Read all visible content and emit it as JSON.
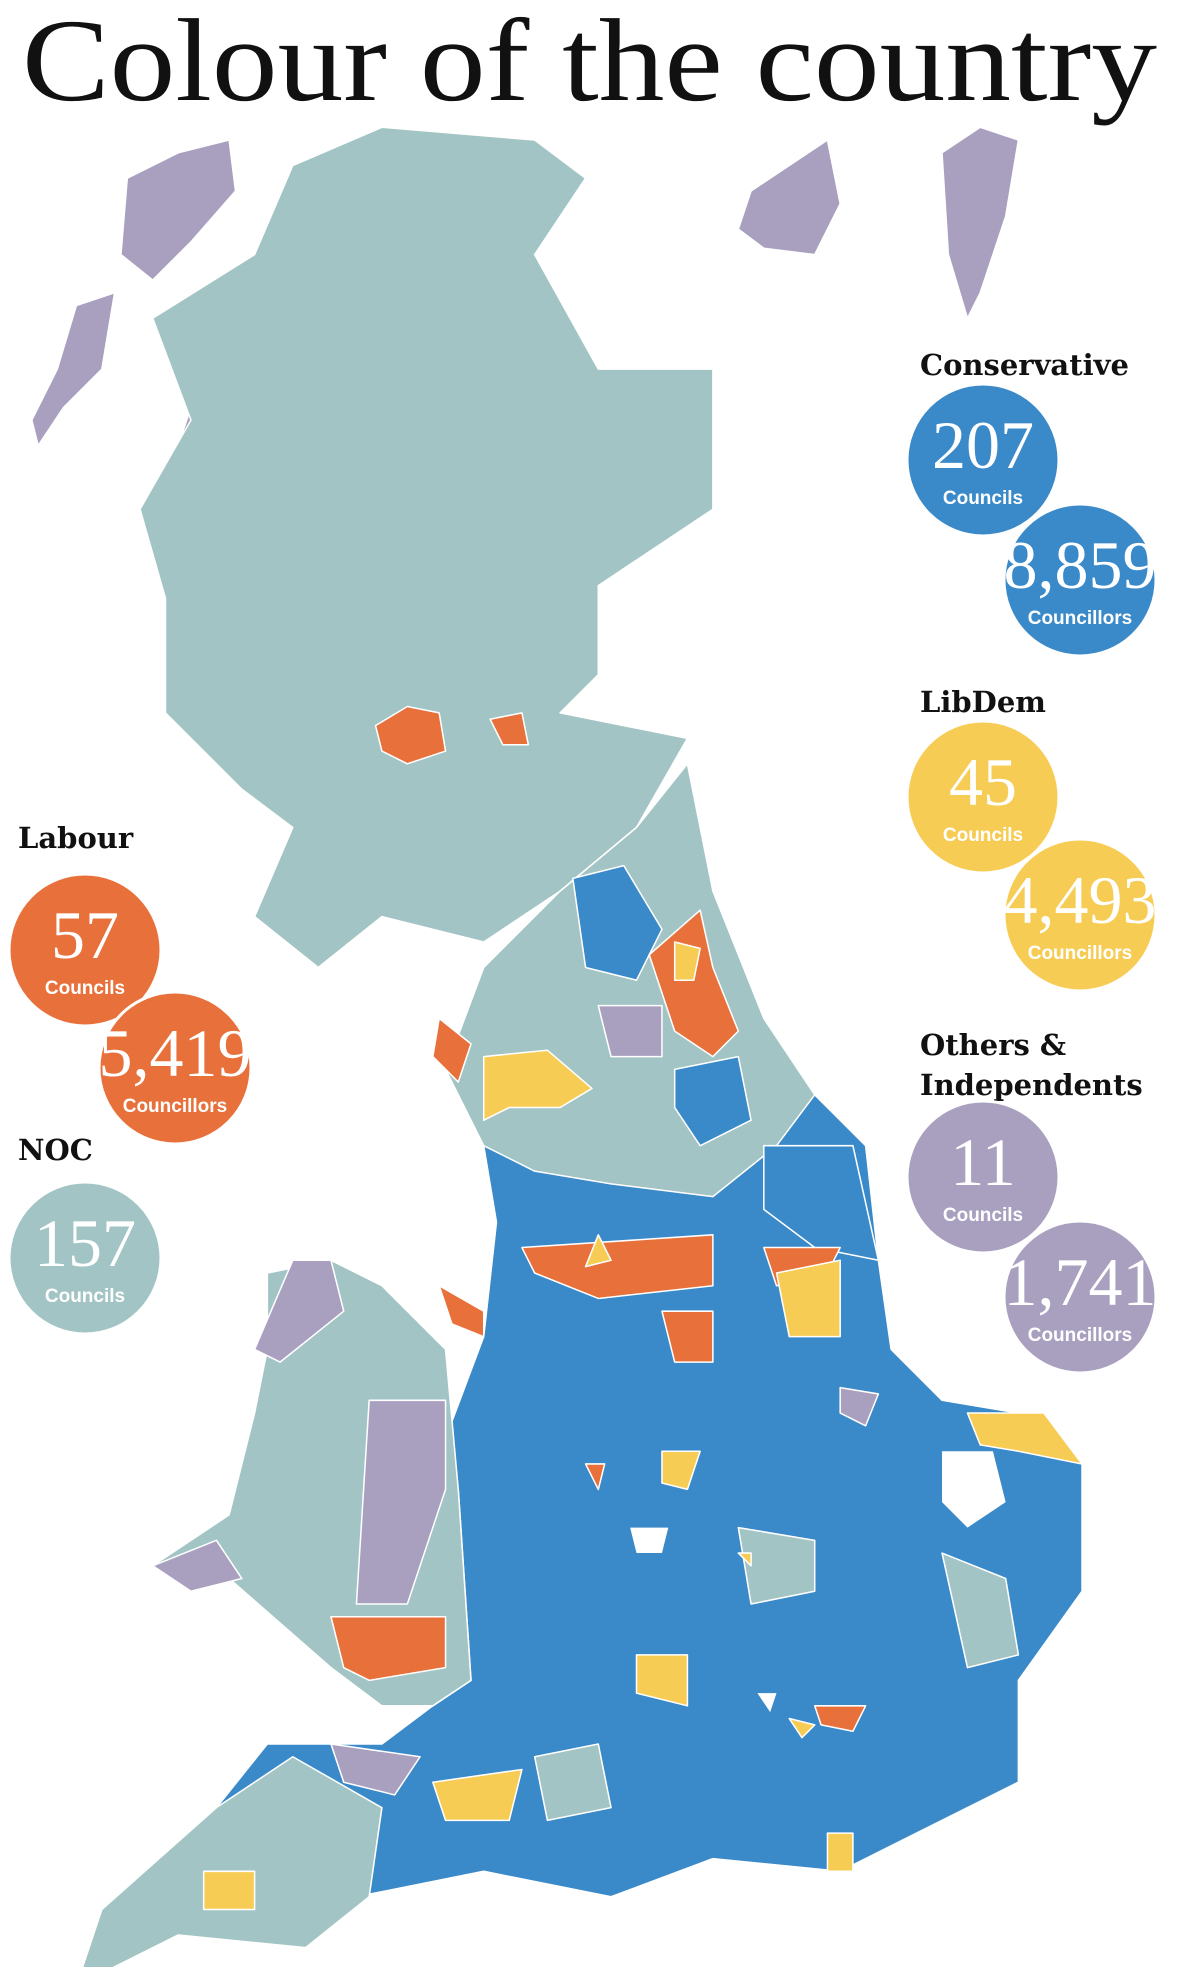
{
  "header": {
    "title": "Colour of the country"
  },
  "parties": [
    {
      "name": "Conservative",
      "color": "#3a89c9",
      "councils": "207",
      "councils_label": "Councils",
      "councillors": "8,859",
      "councillors_label": "Councillors"
    },
    {
      "name": "LibDem",
      "color": "#f7cc55",
      "councils": "45",
      "councils_label": "Councils",
      "councillors": "4,493",
      "councillors_label": "Councillors"
    },
    {
      "name": "Others & Independents",
      "color": "#a99fbf",
      "councils": "11",
      "councils_label": "Councils",
      "councillors": "1,741",
      "councillors_label": "Councillors"
    },
    {
      "name": "Labour",
      "color": "#e8703a",
      "councils": "57",
      "councils_label": "Councils",
      "councillors": "5,419",
      "councillors_label": "Councillors"
    },
    {
      "name": "NOC",
      "color": "#a3c4c4",
      "councils": "157",
      "councils_label": "Councils"
    }
  ]
}
